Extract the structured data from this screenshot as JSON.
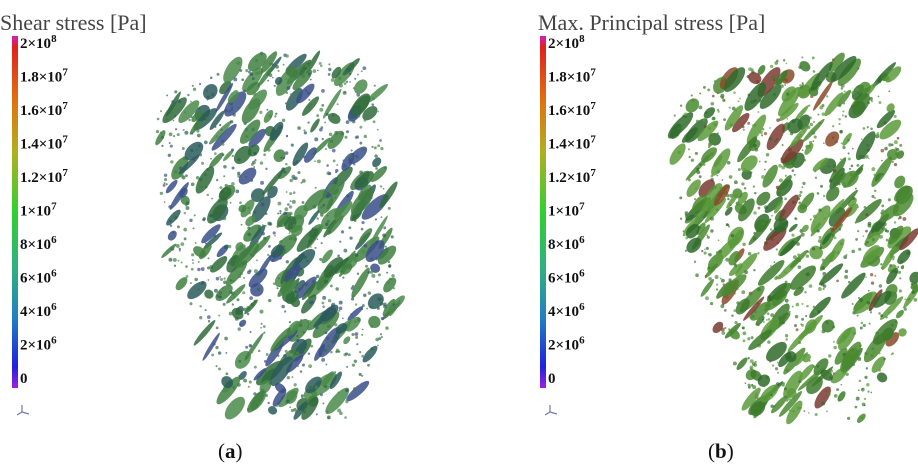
{
  "panels": [
    {
      "title": "Shear stress [Pa]",
      "scale_labels": [
        {
          "text": "2×10",
          "sup": "8"
        },
        {
          "text": "1.8×10",
          "sup": "7"
        },
        {
          "text": "1.6×10",
          "sup": "7"
        },
        {
          "text": "1.4×10",
          "sup": "7"
        },
        {
          "text": "1.2×10",
          "sup": "7"
        },
        {
          "text": "1×10",
          "sup": "7"
        },
        {
          "text": "8×10",
          "sup": "6"
        },
        {
          "text": "6×10",
          "sup": "6"
        },
        {
          "text": "4×10",
          "sup": "6"
        },
        {
          "text": "2×10",
          "sup": "6"
        },
        {
          "text": "0"
        }
      ],
      "caption": {
        "open": "(",
        "letter": "a",
        "close": ")"
      }
    },
    {
      "title": "Max. Principal stress [Pa]",
      "scale_labels": [
        {
          "text": "2×10",
          "sup": "8"
        },
        {
          "text": "1.8×10",
          "sup": "7"
        },
        {
          "text": "1.6×10",
          "sup": "7"
        },
        {
          "text": "1.4×10",
          "sup": "7"
        },
        {
          "text": "1.2×10",
          "sup": "7"
        },
        {
          "text": "1×10",
          "sup": "7"
        },
        {
          "text": "8×10",
          "sup": "6"
        },
        {
          "text": "6×10",
          "sup": "6"
        },
        {
          "text": "4×10",
          "sup": "6"
        },
        {
          "text": "2×10",
          "sup": "6"
        },
        {
          "text": "0"
        }
      ],
      "caption": {
        "open": "(",
        "letter": "b",
        "close": ")"
      }
    }
  ]
}
